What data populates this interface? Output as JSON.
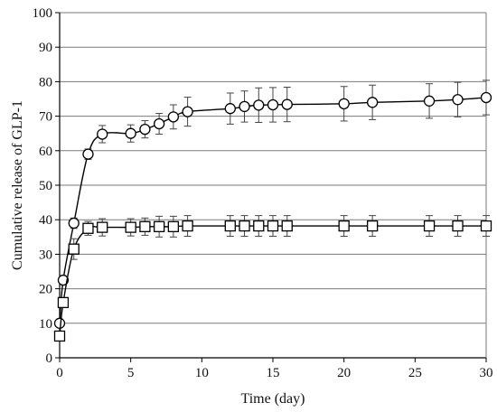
{
  "chart_data": {
    "type": "line",
    "title": "",
    "xlabel": "Time (day)",
    "ylabel": "Cumulative release of GLP-1",
    "xlim": [
      0,
      30
    ],
    "ylim": [
      0,
      100
    ],
    "x_ticks": [
      0,
      5,
      10,
      15,
      20,
      25,
      30
    ],
    "y_ticks": [
      0,
      10,
      20,
      30,
      40,
      50,
      60,
      70,
      80,
      90,
      100
    ],
    "grid": "horizontal",
    "legend": "none",
    "series": [
      {
        "marker": "circle",
        "color": "#000000",
        "x": [
          0,
          0.25,
          1,
          2,
          3,
          5,
          6,
          7,
          8,
          9,
          12,
          13,
          14,
          15,
          16,
          20,
          22,
          26,
          28,
          30
        ],
        "y": [
          10,
          22.5,
          39,
          59,
          64.8,
          65,
          66.2,
          67.8,
          69.8,
          71.3,
          72.2,
          72.8,
          73.2,
          73.3,
          73.4,
          73.6,
          74,
          74.4,
          74.8,
          75.4
        ],
        "error": [
          0,
          0.5,
          1.5,
          1.5,
          2.5,
          2.5,
          2.5,
          3,
          3.5,
          4.2,
          4.5,
          4.5,
          5,
          5,
          5,
          5,
          5,
          5,
          5,
          5
        ]
      },
      {
        "marker": "square",
        "color": "#000000",
        "x": [
          0,
          0.25,
          1,
          2,
          3,
          5,
          6,
          7,
          8,
          9,
          12,
          13,
          14,
          15,
          16,
          20,
          22,
          26,
          28,
          30
        ],
        "y": [
          6.3,
          16,
          31.5,
          37.5,
          37.8,
          37.8,
          38,
          38,
          38,
          38.2,
          38.2,
          38.2,
          38.2,
          38.2,
          38.2,
          38.2,
          38.2,
          38.2,
          38.2,
          38.2
        ],
        "error": [
          0,
          0,
          3,
          2,
          2.5,
          2.5,
          2.5,
          3,
          3,
          3,
          3,
          3,
          3,
          3,
          3,
          3,
          3,
          3,
          3,
          3
        ]
      }
    ]
  }
}
